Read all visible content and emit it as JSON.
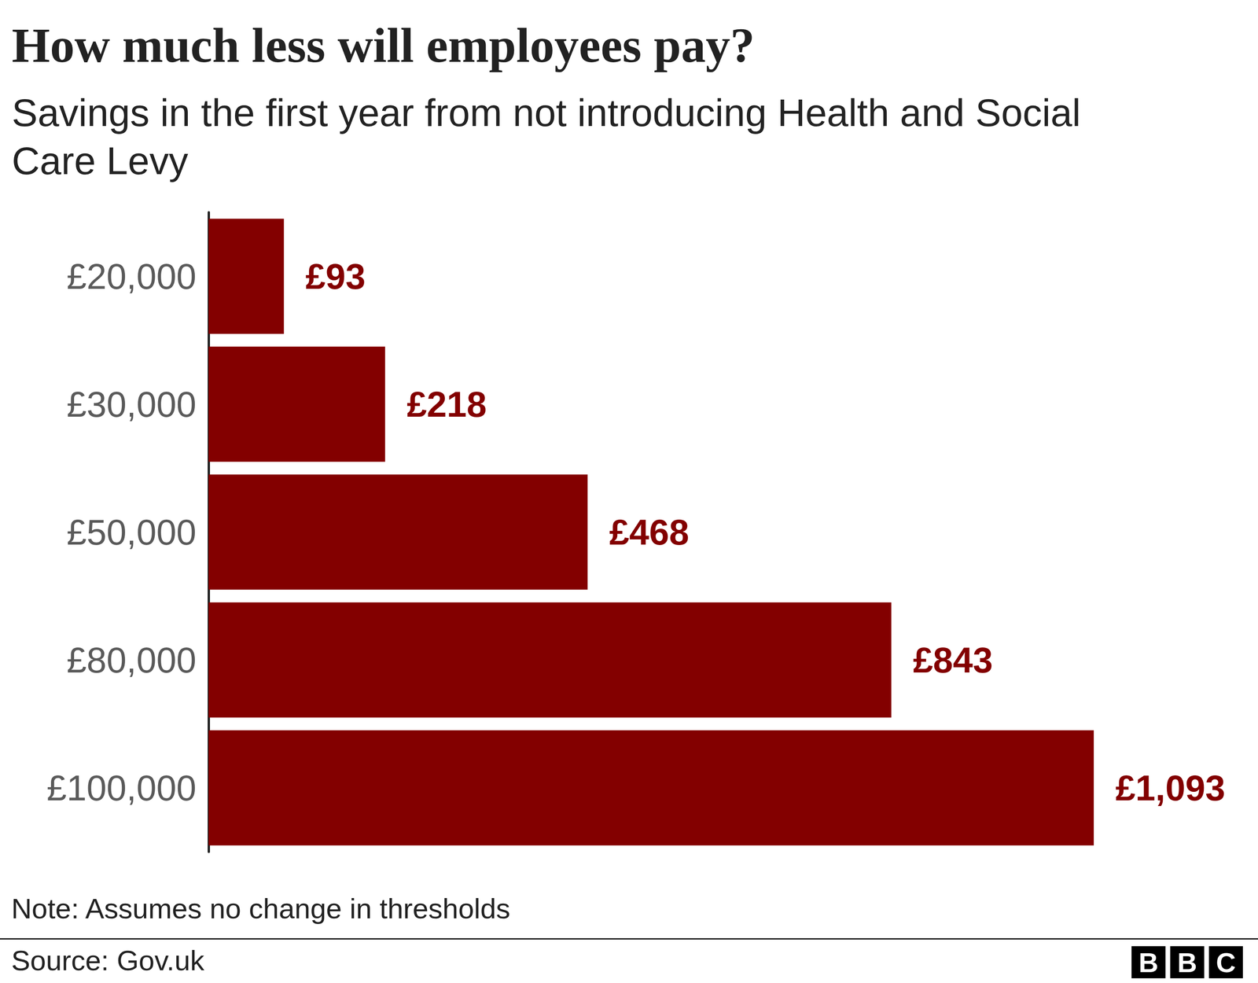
{
  "chart_data": {
    "type": "bar",
    "title": "How much less will employees pay?",
    "subtitle": "Savings in the first year from not introducing Health and Social Care Levy",
    "categories": [
      "£20,000",
      "£30,000",
      "£50,000",
      "£80,000",
      "£100,000"
    ],
    "values": [
      93,
      218,
      468,
      843,
      1093
    ],
    "value_labels": [
      "£93",
      "£218",
      "£468",
      "£843",
      "£1,093"
    ],
    "color": "#830000",
    "orientation": "horizontal",
    "data_labels": true,
    "tick_labels": "y",
    "grid": false,
    "xlim": [
      0,
      1100
    ],
    "note": "Note: Assumes no change in thresholds",
    "source": "Source: Gov.uk",
    "logo": "BBC"
  }
}
